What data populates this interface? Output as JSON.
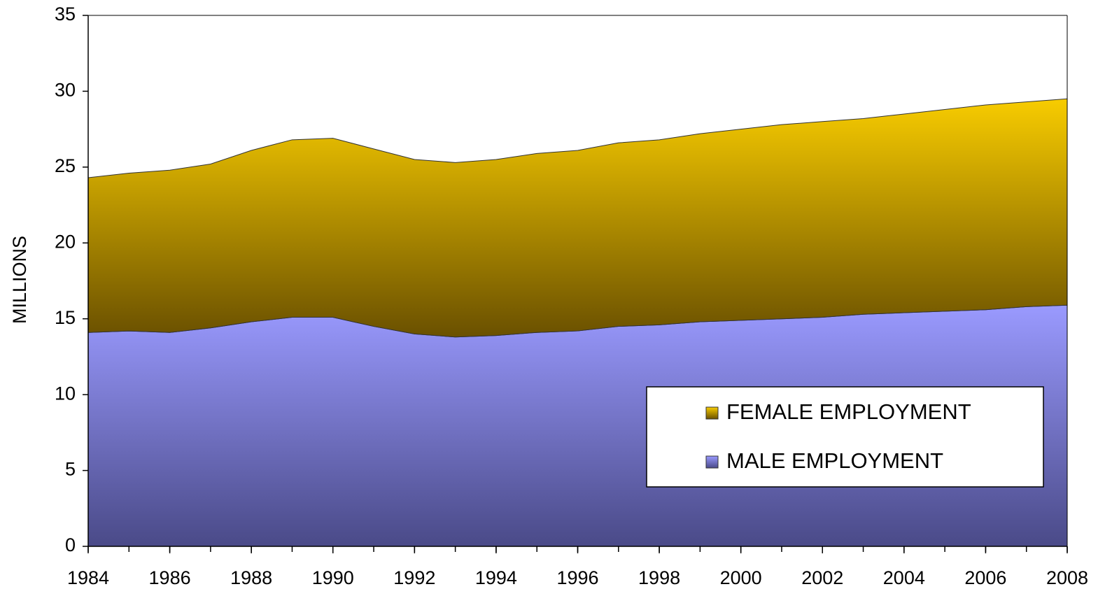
{
  "chart_data": {
    "type": "stacked_area",
    "y_label": "MILLIONS",
    "x": [
      1984,
      1985,
      1986,
      1987,
      1988,
      1989,
      1990,
      1991,
      1992,
      1993,
      1994,
      1995,
      1996,
      1997,
      1998,
      1999,
      2000,
      2001,
      2002,
      2003,
      2004,
      2005,
      2006,
      2007,
      2008
    ],
    "series": [
      {
        "name": "MALE EMPLOYMENT",
        "color": "#8c8cf0",
        "values": [
          14.1,
          14.2,
          14.1,
          14.4,
          14.8,
          15.1,
          15.1,
          14.5,
          14.0,
          13.8,
          13.9,
          14.1,
          14.2,
          14.5,
          14.6,
          14.8,
          14.9,
          15.0,
          15.1,
          15.3,
          15.4,
          15.5,
          15.6,
          15.8,
          15.9
        ]
      },
      {
        "name": "FEMALE EMPLOYMENT",
        "color": "#e0b000",
        "values": [
          10.2,
          10.4,
          10.7,
          10.8,
          11.3,
          11.7,
          11.8,
          11.7,
          11.5,
          11.5,
          11.6,
          11.8,
          11.9,
          12.1,
          12.2,
          12.4,
          12.6,
          12.8,
          12.9,
          12.9,
          13.1,
          13.3,
          13.5,
          13.5,
          13.6
        ]
      }
    ],
    "xlim": [
      1984,
      2008
    ],
    "xticks": [
      1984,
      1986,
      1988,
      1990,
      1992,
      1994,
      1996,
      1998,
      2000,
      2002,
      2004,
      2006,
      2008
    ],
    "ylim": [
      0,
      35
    ],
    "yticks": [
      0,
      5,
      10,
      15,
      20,
      25,
      30,
      35
    ],
    "legend": "lower right"
  }
}
